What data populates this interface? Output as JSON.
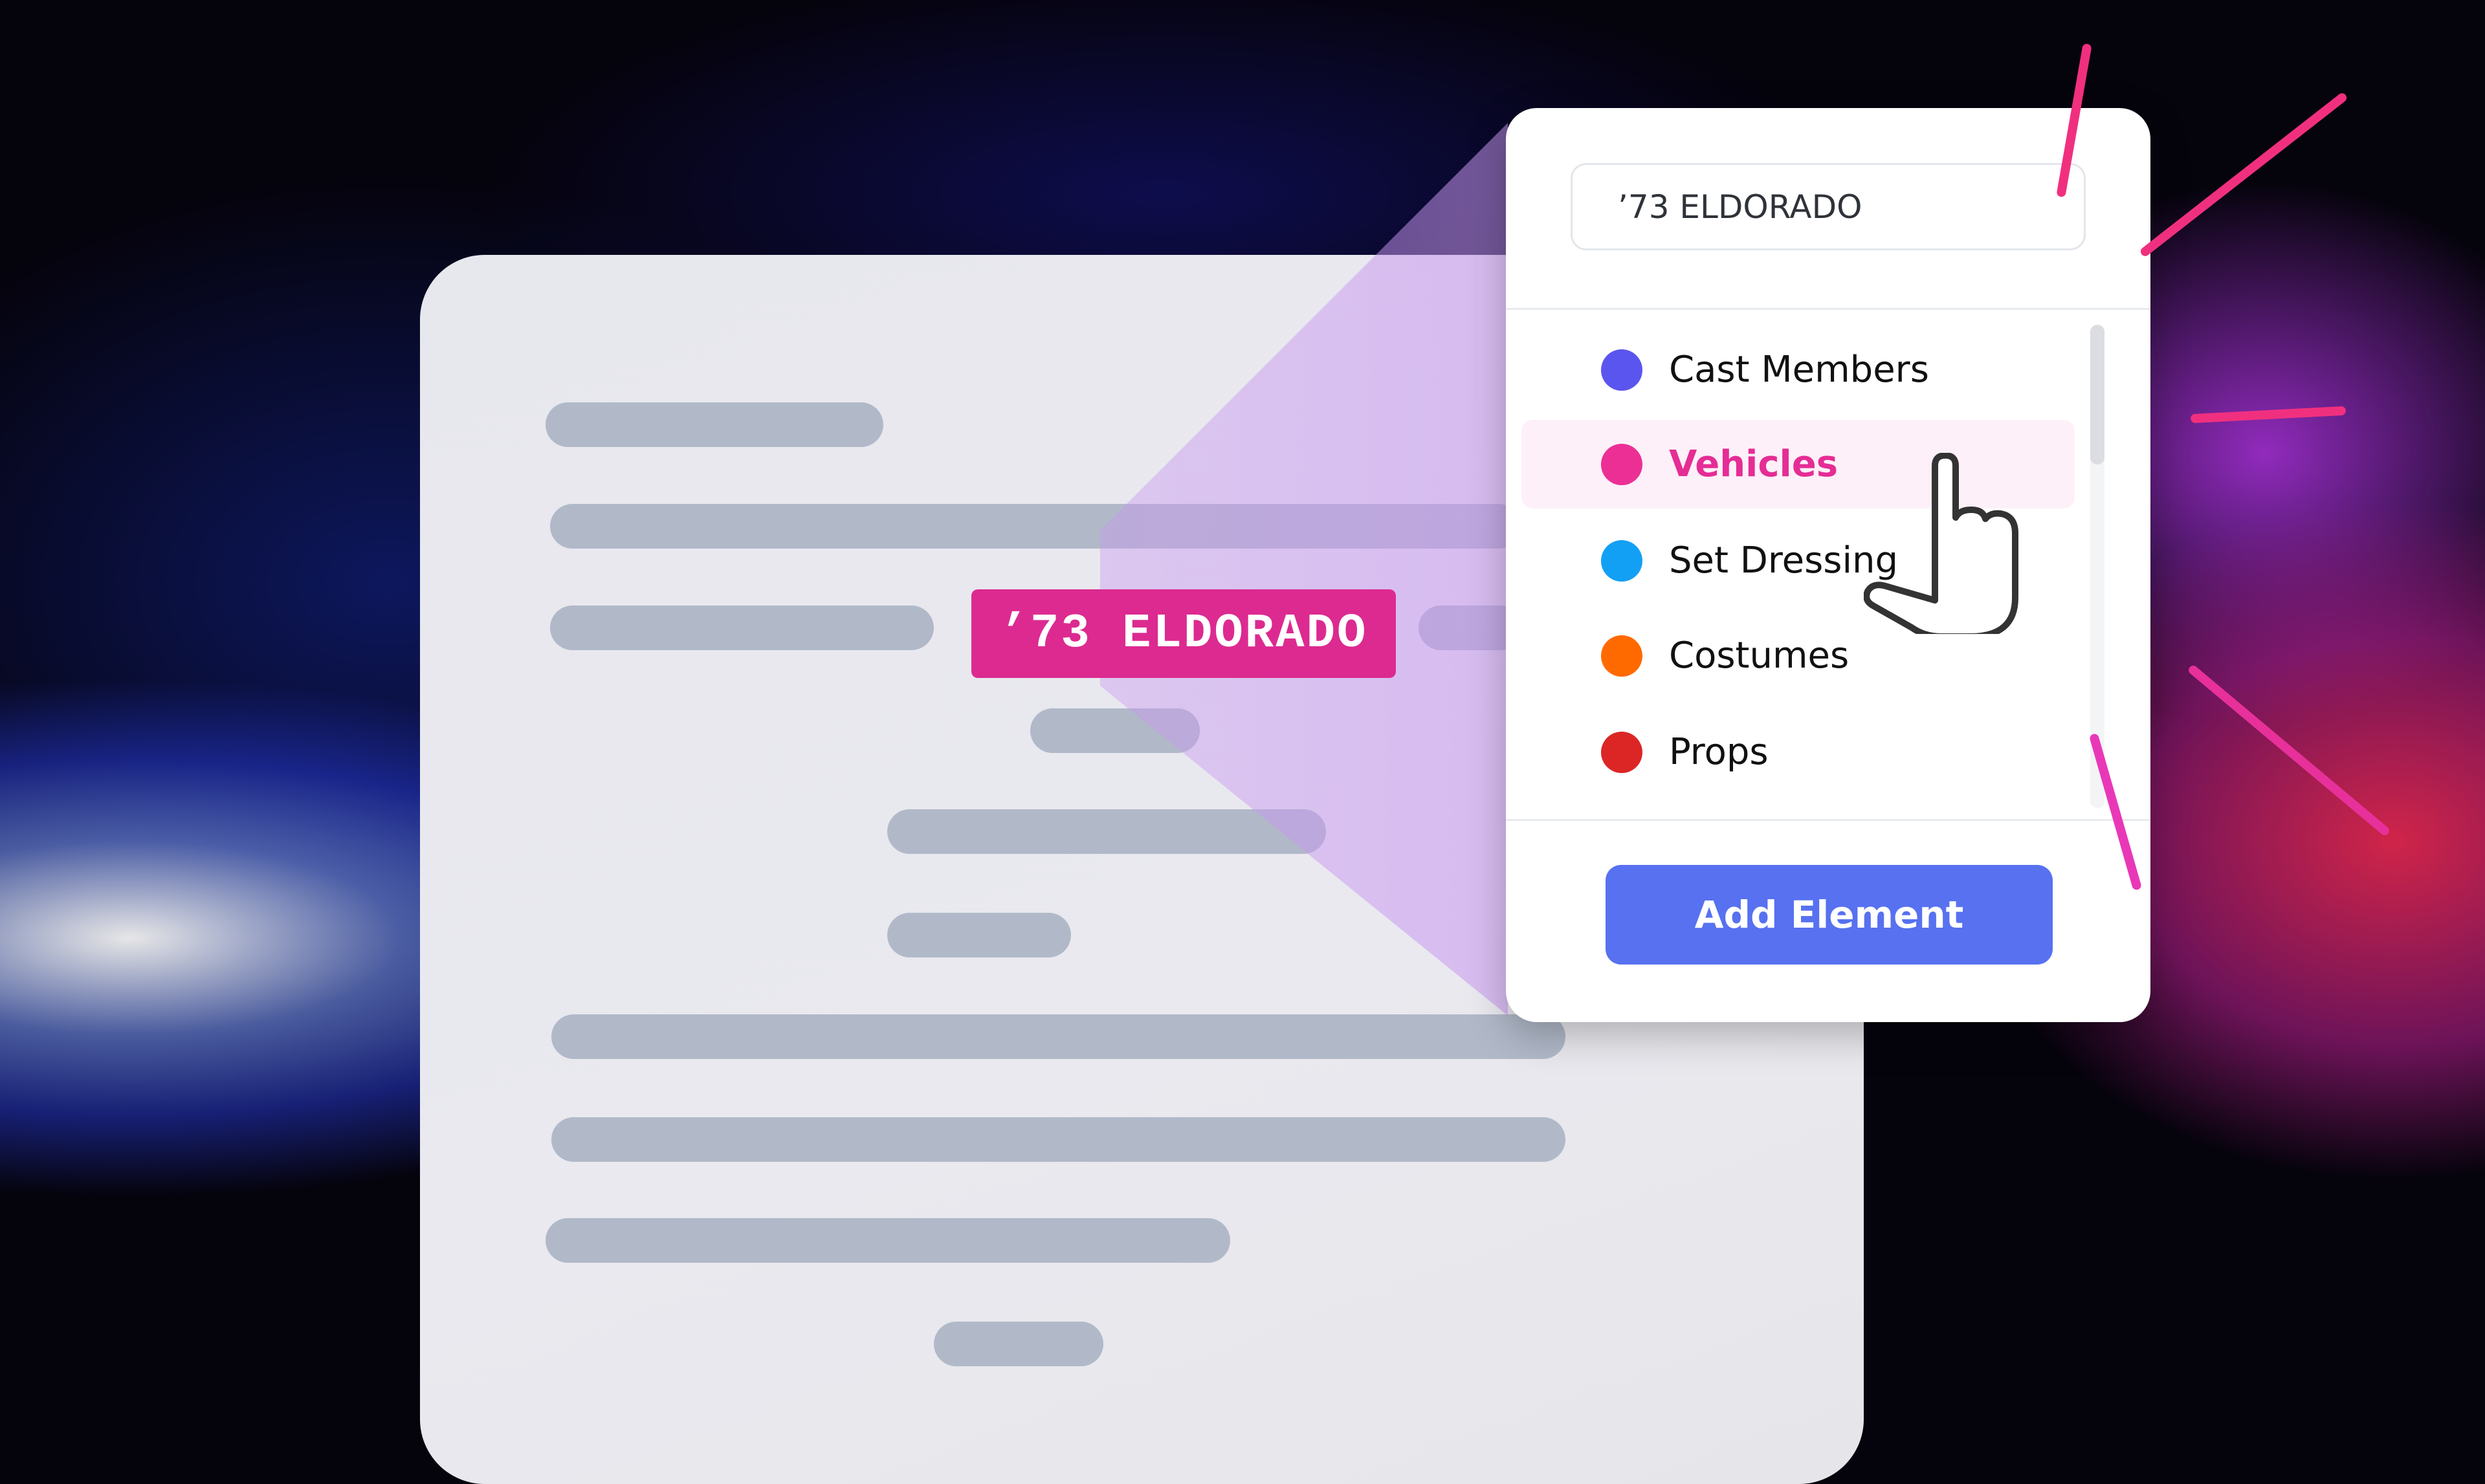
{
  "document": {
    "highlight_tag": "’73 ELDORADO"
  },
  "panel": {
    "search_value": "’73 ELDORADO",
    "items": [
      {
        "label": "Cast Members",
        "color": "#5b55ef"
      },
      {
        "label": "Vehicles",
        "color": "#ec2f95",
        "selected": true
      },
      {
        "label": "Set Dressing",
        "color": "#12a0f5"
      },
      {
        "label": "Costumes",
        "color": "#ff6a00"
      },
      {
        "label": "Props",
        "color": "#dc2626"
      }
    ],
    "add_button": "Add Element",
    "accent": "#5771f0"
  },
  "cursor": "hand-pointer-icon"
}
